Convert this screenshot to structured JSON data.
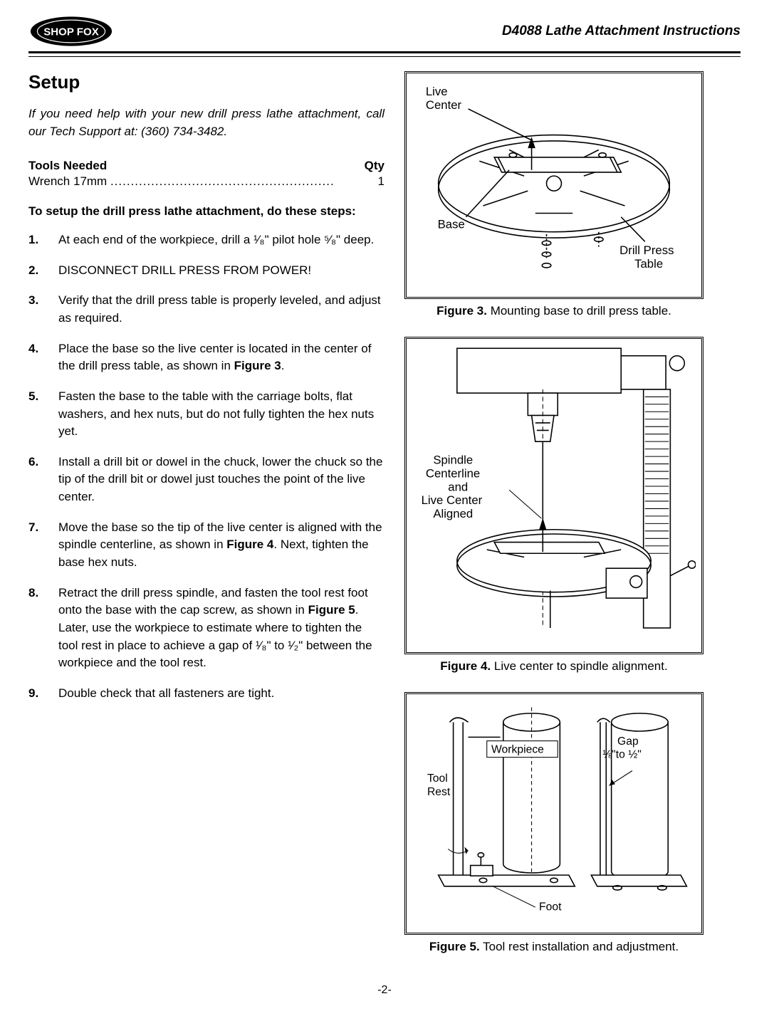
{
  "header": {
    "logo_text": "SHOP FOX",
    "doc_title": "D4088 Lathe Attachment Instructions"
  },
  "section_title": "Setup",
  "intro": "If you need help with your new drill press lathe attachment, call our Tech Support at: (360) 734-3482.",
  "tools": {
    "heading_left": "Tools Needed",
    "heading_right": "Qty",
    "item": "Wrench 17mm",
    "qty": "1"
  },
  "instruction_heading": "To setup the drill press lathe attachment, do these steps:",
  "steps": [
    "At each end of the workpiece, drill a ¹⁄₈\" pilot hole ⁵⁄₈\" deep.",
    "DISCONNECT DRILL PRESS FROM POWER!",
    "Verify that the drill press table is properly leveled, and adjust as required.",
    "Place the base so the live center is located in the center of the drill press table, as shown in <b>Figure 3</b>.",
    "Fasten the base to the table with the carriage bolts, flat washers, and hex nuts, but do not fully tighten the hex nuts yet.",
    "Install a drill bit or dowel in the chuck, lower the chuck so the tip of the drill bit or dowel just touches the point of the live center.",
    "Move the base so the tip of the live center is aligned with the spindle centerline, as shown in <b>Figure 4</b>. Next, tighten the base hex nuts.",
    "Retract the drill press spindle, and fasten the tool rest foot onto the base with the cap screw, as shown in <b>Figure 5</b>. Later, use the workpiece to estimate where to tighten the tool rest in place to achieve a gap of ¹⁄₈\" to ¹⁄₂\" between the workpiece and the tool rest.",
    "Double check that all fasteners are tight."
  ],
  "figures": {
    "fig3": {
      "cap_bold": "Figure 3.",
      "cap_text": " Mounting base to drill press table.",
      "label_live_center": "Live Center",
      "label_base": "Base",
      "label_table": "Drill Press Table"
    },
    "fig4": {
      "cap_bold": "Figure 4.",
      "cap_text": " Live center to spindle alignment.",
      "label_align": "Spindle Centerline and Live Center Aligned"
    },
    "fig5": {
      "cap_bold": "Figure 5.",
      "cap_text": " Tool rest installation and adjustment.",
      "label_workpiece": "Workpiece",
      "label_gap": "Gap ¹⁄₈\"to ¹⁄₂\"",
      "label_toolrest": "Tool Rest",
      "label_foot": "Foot"
    }
  },
  "page_number": "-2-",
  "colors": {
    "stroke": "#000000",
    "fill": "#ffffff"
  }
}
